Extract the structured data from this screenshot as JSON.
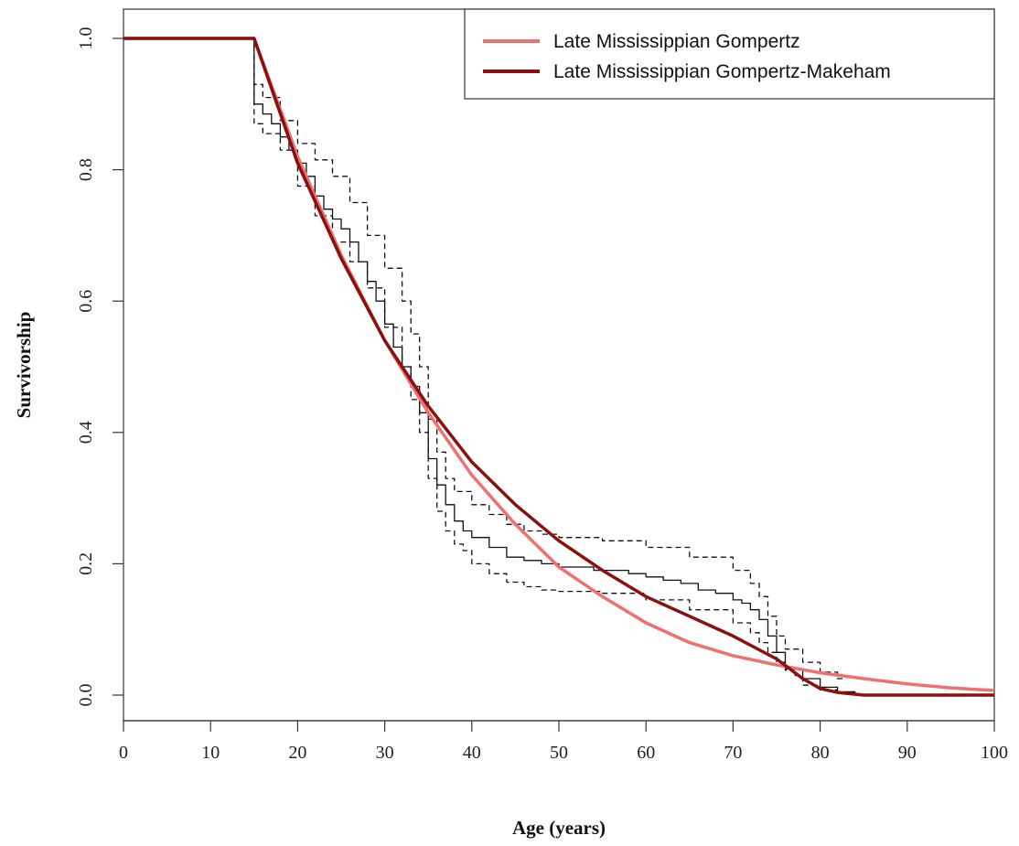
{
  "chart_data": {
    "type": "line",
    "xlabel": "Age (years)",
    "ylabel": "Survivorship",
    "xlim": [
      0,
      100
    ],
    "ylim": [
      0,
      1
    ],
    "x_ticks": [
      "0",
      "10",
      "20",
      "30",
      "40",
      "50",
      "60",
      "70",
      "80",
      "90",
      "100"
    ],
    "y_ticks": [
      "0.0",
      "0.2",
      "0.4",
      "0.6",
      "0.8",
      "1.0"
    ],
    "grid": false,
    "legend_position": "top-right",
    "series": [
      {
        "name": "Late Mississippian Gompertz",
        "color": "#f07070",
        "style": "solid",
        "x": [
          0,
          15,
          20,
          25,
          30,
          35,
          40,
          45,
          50,
          55,
          60,
          65,
          70,
          75,
          80,
          85,
          90,
          95,
          100
        ],
        "y": [
          1.0,
          1.0,
          0.82,
          0.67,
          0.54,
          0.43,
          0.335,
          0.26,
          0.195,
          0.15,
          0.11,
          0.08,
          0.06,
          0.046,
          0.034,
          0.025,
          0.017,
          0.011,
          0.007
        ]
      },
      {
        "name": "Late Mississippian Gompertz-Makeham",
        "color": "#8b1010",
        "style": "solid",
        "x": [
          0,
          15,
          20,
          25,
          30,
          35,
          40,
          45,
          50,
          55,
          60,
          65,
          70,
          75,
          78,
          80,
          82,
          85,
          90,
          100
        ],
        "y": [
          1.0,
          1.0,
          0.81,
          0.665,
          0.54,
          0.44,
          0.355,
          0.29,
          0.235,
          0.19,
          0.15,
          0.12,
          0.09,
          0.055,
          0.025,
          0.01,
          0.004,
          0.0,
          0.0,
          0.0
        ]
      },
      {
        "style": "step",
        "color": "#111111",
        "x": [
          0,
          15,
          15,
          16,
          17,
          18,
          19,
          20,
          21,
          22,
          23,
          24,
          25,
          26,
          27,
          28,
          29,
          30,
          31,
          32,
          33,
          34,
          35,
          36,
          37,
          38,
          39,
          40,
          42,
          44,
          46,
          48,
          50,
          52,
          54,
          56,
          58,
          60,
          62,
          64,
          66,
          68,
          70,
          71,
          72,
          73,
          74,
          75,
          76,
          78,
          80,
          82,
          84,
          86
        ],
        "y": [
          1.0,
          1.0,
          0.9,
          0.885,
          0.87,
          0.85,
          0.83,
          0.81,
          0.79,
          0.76,
          0.74,
          0.725,
          0.71,
          0.69,
          0.66,
          0.63,
          0.6,
          0.565,
          0.53,
          0.5,
          0.47,
          0.43,
          0.36,
          0.32,
          0.29,
          0.265,
          0.25,
          0.24,
          0.225,
          0.21,
          0.205,
          0.2,
          0.195,
          0.195,
          0.19,
          0.19,
          0.185,
          0.18,
          0.175,
          0.17,
          0.16,
          0.155,
          0.145,
          0.14,
          0.13,
          0.115,
          0.09,
          0.065,
          0.04,
          0.025,
          0.012,
          0.005,
          0.0,
          0.0
        ]
      },
      {
        "style": "dashed-step",
        "color": "#111111",
        "x": [
          0,
          15,
          15,
          16,
          18,
          20,
          22,
          24,
          26,
          28,
          30,
          32,
          33,
          34,
          35,
          36,
          37,
          38,
          40,
          42,
          44,
          46,
          48,
          50,
          55,
          60,
          65,
          70,
          72,
          73,
          74,
          75,
          76,
          78,
          80,
          82,
          83
        ],
        "y": [
          1.0,
          1.0,
          0.93,
          0.91,
          0.875,
          0.84,
          0.815,
          0.79,
          0.75,
          0.7,
          0.65,
          0.6,
          0.55,
          0.5,
          0.42,
          0.37,
          0.33,
          0.31,
          0.29,
          0.275,
          0.26,
          0.25,
          0.245,
          0.24,
          0.235,
          0.225,
          0.21,
          0.19,
          0.17,
          0.15,
          0.12,
          0.09,
          0.07,
          0.05,
          0.035,
          0.025,
          0.025
        ]
      },
      {
        "style": "dashed-step",
        "color": "#111111",
        "x": [
          0,
          15,
          15,
          16,
          18,
          20,
          22,
          24,
          26,
          28,
          30,
          32,
          33,
          34,
          35,
          36,
          37,
          38,
          39,
          40,
          42,
          44,
          46,
          48,
          50,
          55,
          60,
          65,
          70,
          72,
          73,
          74,
          75,
          76,
          77,
          78,
          80,
          82,
          84
        ],
        "y": [
          1.0,
          1.0,
          0.87,
          0.855,
          0.83,
          0.775,
          0.73,
          0.69,
          0.66,
          0.62,
          0.56,
          0.5,
          0.45,
          0.4,
          0.33,
          0.28,
          0.25,
          0.23,
          0.22,
          0.2,
          0.185,
          0.172,
          0.165,
          0.16,
          0.158,
          0.155,
          0.145,
          0.13,
          0.11,
          0.095,
          0.08,
          0.065,
          0.05,
          0.038,
          0.03,
          0.015,
          0.008,
          0.003,
          0.0
        ]
      }
    ]
  }
}
